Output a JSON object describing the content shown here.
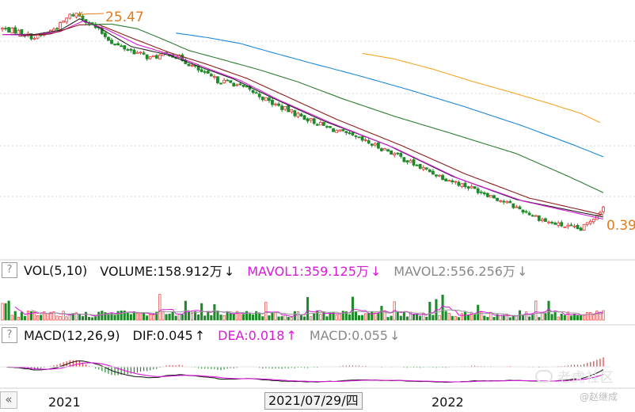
{
  "price_panel": {
    "high_label": "25.47",
    "low_label": "0.39"
  },
  "volume_panel": {
    "help": "?",
    "title": "VOL(5,10)",
    "volume": "VOLUME:158.912万",
    "mavol1": "MAVOL1:359.125万",
    "mavol2": "MAVOL2:556.256万",
    "down_arrow": "↓",
    "up_arrow": "↑"
  },
  "macd_panel": {
    "help": "?",
    "title": "MACD(12,26,9)",
    "dif": "DIF:0.045",
    "dea": "DEA:0.018",
    "macd": "MACD:0.055",
    "down_arrow": "↓",
    "up_arrow": "↑"
  },
  "x_axis": {
    "nav_button": "«",
    "labels": [
      "2021",
      "2022"
    ],
    "cursor_date": "2021/07/29/四"
  },
  "watermark": {
    "brand": "老虎社区",
    "author": "@赵继成"
  },
  "colors": {
    "up": "#e23a3a",
    "down": "#1f8a2a",
    "ma_black": "#222222",
    "ma_pink": "#d81ad8",
    "ma_darkred": "#8b1a1a",
    "ma_green": "#2e7d32",
    "ma_blue": "#1e88d6",
    "ma_orange": "#f5a623",
    "annotation": "#e07b1e",
    "grid": "#d8d8d8"
  },
  "chart_data": [
    {
      "type": "candlestick",
      "title": "",
      "x_labels": [
        "2021",
        "2021/07/29",
        "2022"
      ],
      "high": 25.47,
      "low": 0.39,
      "price_path_points": [
        [
          0,
          19.0
        ],
        [
          5,
          18.0
        ],
        [
          10,
          16.0
        ],
        [
          14,
          17.5
        ],
        [
          18,
          20.5
        ],
        [
          21,
          24.5
        ],
        [
          23,
          25.47
        ],
        [
          26,
          22.5
        ],
        [
          30,
          18.5
        ],
        [
          35,
          14.0
        ],
        [
          40,
          12.5
        ],
        [
          46,
          10.8
        ],
        [
          52,
          11.8
        ],
        [
          56,
          10.5
        ],
        [
          62,
          8.2
        ],
        [
          67,
          7.0
        ],
        [
          72,
          6.6
        ],
        [
          78,
          5.6
        ],
        [
          84,
          4.5
        ],
        [
          92,
          3.6
        ],
        [
          100,
          2.9
        ],
        [
          110,
          2.3
        ],
        [
          120,
          1.8
        ],
        [
          130,
          1.3
        ],
        [
          140,
          1.0
        ],
        [
          150,
          0.8
        ],
        [
          160,
          0.6
        ],
        [
          170,
          0.45
        ],
        [
          180,
          0.39
        ],
        [
          187,
          0.6
        ]
      ],
      "moving_averages": [
        {
          "color": "#222222",
          "points": [
            [
              0,
              17.0
            ],
            [
              10,
              17.0
            ],
            [
              18,
              18.5
            ],
            [
              24,
              23.0
            ],
            [
              30,
              19.5
            ],
            [
              40,
              13.5
            ],
            [
              52,
              11.4
            ],
            [
              62,
              9.0
            ],
            [
              72,
              7.2
            ],
            [
              84,
              5.0
            ],
            [
              100,
              3.2
            ],
            [
              120,
              2.0
            ],
            [
              140,
              1.1
            ],
            [
              160,
              0.7
            ],
            [
              187,
              0.5
            ]
          ]
        },
        {
          "color": "#d81ad8",
          "points": [
            [
              0,
              17.0
            ],
            [
              10,
              16.8
            ],
            [
              18,
              18.0
            ],
            [
              25,
              22.0
            ],
            [
              32,
              19.0
            ],
            [
              42,
              14.0
            ],
            [
              54,
              11.2
            ],
            [
              64,
              8.8
            ],
            [
              74,
              7.0
            ],
            [
              86,
              4.8
            ],
            [
              102,
              3.1
            ],
            [
              122,
              1.9
            ],
            [
              142,
              1.05
            ],
            [
              162,
              0.68
            ],
            [
              187,
              0.48
            ]
          ]
        },
        {
          "color": "#8b1a1a",
          "points": [
            [
              5,
              16.5
            ],
            [
              15,
              17.2
            ],
            [
              24,
              20.5
            ],
            [
              30,
              20.6
            ],
            [
              40,
              16.0
            ],
            [
              52,
              12.0
            ],
            [
              64,
              9.5
            ],
            [
              76,
              7.3
            ],
            [
              88,
              5.2
            ],
            [
              104,
              3.3
            ],
            [
              124,
              2.0
            ],
            [
              144,
              1.15
            ],
            [
              164,
              0.72
            ],
            [
              187,
              0.52
            ]
          ]
        },
        {
          "color": "#2e7d32",
          "points": [
            [
              26,
              20.6
            ],
            [
              34,
              20.8
            ],
            [
              42,
              19.0
            ],
            [
              50,
              15.5
            ],
            [
              58,
              12.5
            ],
            [
              70,
              10.2
            ],
            [
              80,
              8.6
            ],
            [
              92,
              6.8
            ],
            [
              106,
              4.9
            ],
            [
              122,
              3.5
            ],
            [
              140,
              2.5
            ],
            [
              160,
              1.7
            ],
            [
              176,
              1.1
            ],
            [
              187,
              0.8
            ]
          ]
        },
        {
          "color": "#1e88d6",
          "points": [
            [
              54,
              17.5
            ],
            [
              64,
              16.0
            ],
            [
              74,
              14.3
            ],
            [
              84,
              12.0
            ],
            [
              96,
              9.8
            ],
            [
              110,
              7.8
            ],
            [
              126,
              5.9
            ],
            [
              144,
              4.2
            ],
            [
              162,
              2.9
            ],
            [
              178,
              2.0
            ],
            [
              187,
              1.6
            ]
          ]
        },
        {
          "color": "#f5a623",
          "points": [
            [
              112,
              11.8
            ],
            [
              122,
              10.6
            ],
            [
              134,
              8.7
            ],
            [
              146,
              6.9
            ],
            [
              158,
              5.6
            ],
            [
              170,
              4.5
            ],
            [
              180,
              3.7
            ],
            [
              186,
              3.1
            ]
          ]
        }
      ]
    },
    {
      "type": "bar",
      "title": "VOL(5,10)",
      "series": [
        {
          "name": "VOLUME",
          "last": "158.912万"
        },
        {
          "name": "MAVOL1",
          "last": "359.125万"
        },
        {
          "name": "MAVOL2",
          "last": "556.256万"
        }
      ]
    },
    {
      "type": "bar",
      "title": "MACD(12,26,9)",
      "series": [
        {
          "name": "DIF",
          "last": 0.045
        },
        {
          "name": "DEA",
          "last": 0.018
        },
        {
          "name": "MACD",
          "last": 0.055
        }
      ]
    }
  ]
}
